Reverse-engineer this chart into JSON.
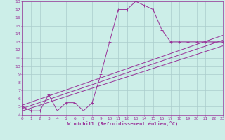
{
  "title": "",
  "xlabel": "Windchill (Refroidissement éolien,°C)",
  "background_color": "#cceee8",
  "grid_color": "#aacccc",
  "line_color": "#993399",
  "xmin": 0,
  "xmax": 23,
  "ymin": 4,
  "ymax": 18,
  "line1_x": [
    0,
    1,
    2,
    3,
    4,
    5,
    6,
    7,
    8,
    9,
    10,
    11,
    12,
    13,
    14,
    15,
    16,
    17,
    18,
    19,
    20,
    21,
    22,
    23
  ],
  "line1_y": [
    5.0,
    4.5,
    4.5,
    6.5,
    4.5,
    5.5,
    5.5,
    4.5,
    5.5,
    9.0,
    13.0,
    17.0,
    17.0,
    18.0,
    17.5,
    17.0,
    14.5,
    13.0,
    13.0,
    13.0,
    13.0,
    13.0,
    13.0,
    13.0
  ],
  "line2_x": [
    0,
    23
  ],
  "line2_y": [
    4.8,
    13.2
  ],
  "line3_x": [
    0,
    23
  ],
  "line3_y": [
    4.5,
    12.5
  ],
  "line4_x": [
    0,
    23
  ],
  "line4_y": [
    5.2,
    13.8
  ]
}
